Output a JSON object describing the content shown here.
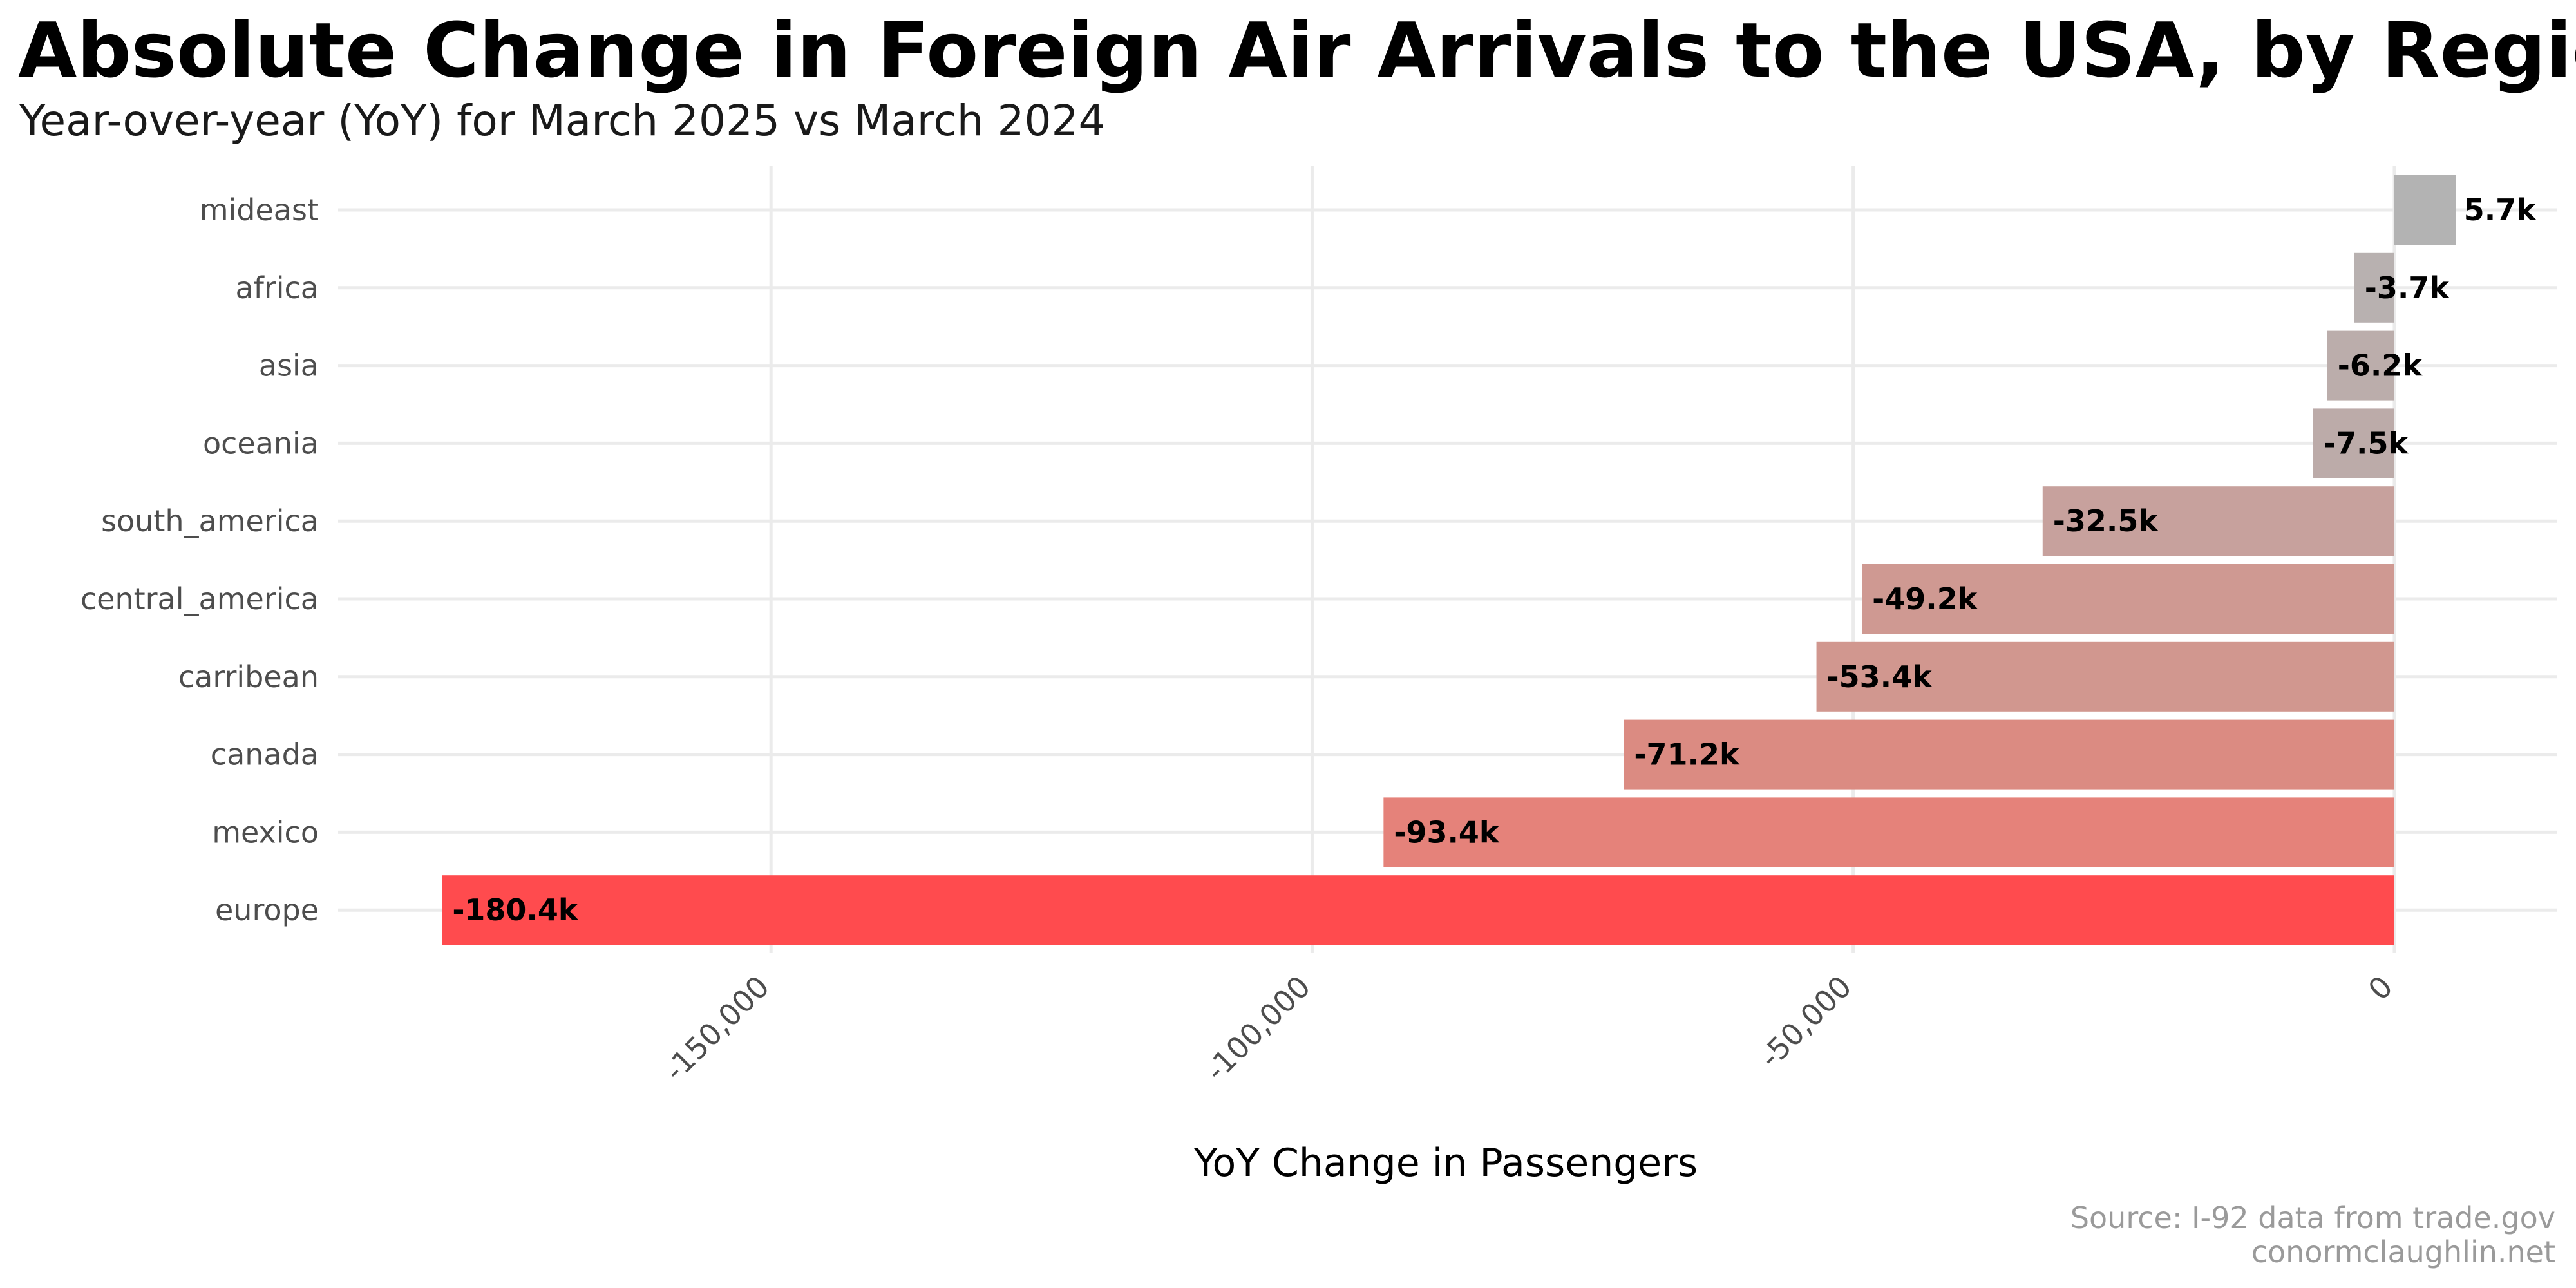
{
  "chart_data": {
    "type": "bar",
    "orientation": "horizontal",
    "title": "Absolute Change in Foreign Air Arrivals to the USA, by Region",
    "subtitle": "Year-over-year (YoY) for March 2025 vs March 2024",
    "xlabel": "YoY Change in Passengers",
    "ylabel": "",
    "categories": [
      "mideast",
      "africa",
      "asia",
      "oceania",
      "south_america",
      "central_america",
      "carribean",
      "canada",
      "mexico",
      "europe"
    ],
    "values": [
      5700,
      -3700,
      -6200,
      -7500,
      -32500,
      -49200,
      -53400,
      -71200,
      -93400,
      -180400
    ],
    "data_labels": [
      "5.7k",
      "-3.7k",
      "-6.2k",
      "-7.5k",
      "-32.5k",
      "-49.2k",
      "-53.4k",
      "-71.2k",
      "-93.4k",
      "-180.4k"
    ],
    "bar_colors": [
      "#b3b3b3",
      "#b8b1b0",
      "#bbadab",
      "#bcaba9",
      "#c7a19d",
      "#cf9992",
      "#d1978f",
      "#db8b82",
      "#e5827a",
      "#ff4b4e"
    ],
    "xlim": [
      -190000,
      15000
    ],
    "xticks": [
      -150000,
      -100000,
      -50000,
      0
    ],
    "xtick_labels": [
      "-150,000",
      "-100,000",
      "-50,000",
      "0"
    ],
    "grid": true,
    "legend": "none",
    "caption_lines": [
      "Source: I-92 data from trade.gov",
      "conormclaughlin.net"
    ]
  }
}
